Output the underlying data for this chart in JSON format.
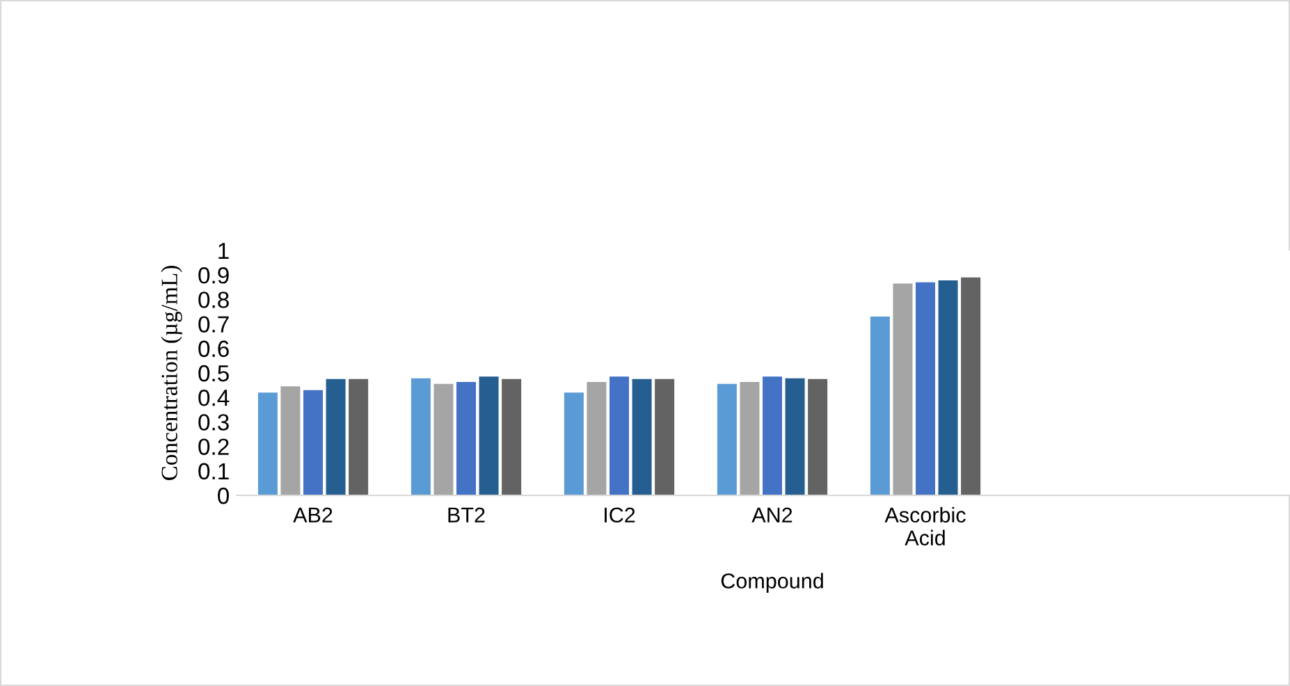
{
  "chart_data": {
    "type": "bar",
    "xlabel": "Compound",
    "ylabel": "Concentration (µg/mL)",
    "categories": [
      "AB2",
      "BT2",
      "IC2",
      "AN2",
      "Ascorbic\nAcid",
      null,
      null
    ],
    "series": [
      {
        "color": "#5b9bd5",
        "values": [
          0.42,
          0.478,
          0.42,
          0.455,
          0.73,
          null,
          null
        ]
      },
      {
        "color": "#a5a5a5",
        "values": [
          0.445,
          0.455,
          0.463,
          0.463,
          0.865,
          null,
          null
        ]
      },
      {
        "color": "#4472c4",
        "values": [
          0.43,
          0.463,
          0.485,
          0.485,
          0.87,
          null,
          null
        ]
      },
      {
        "color": "#255e91",
        "values": [
          0.475,
          0.485,
          0.475,
          0.478,
          0.878,
          null,
          null
        ]
      },
      {
        "color": "#636363",
        "values": [
          0.475,
          0.475,
          0.475,
          0.475,
          0.89,
          null,
          null
        ]
      }
    ],
    "ylim": [
      0,
      1
    ],
    "yticks": [
      0,
      0.1,
      0.2,
      0.3,
      0.4,
      0.5,
      0.6,
      0.7,
      0.8,
      0.9,
      1
    ],
    "grid": false,
    "legend": false
  }
}
